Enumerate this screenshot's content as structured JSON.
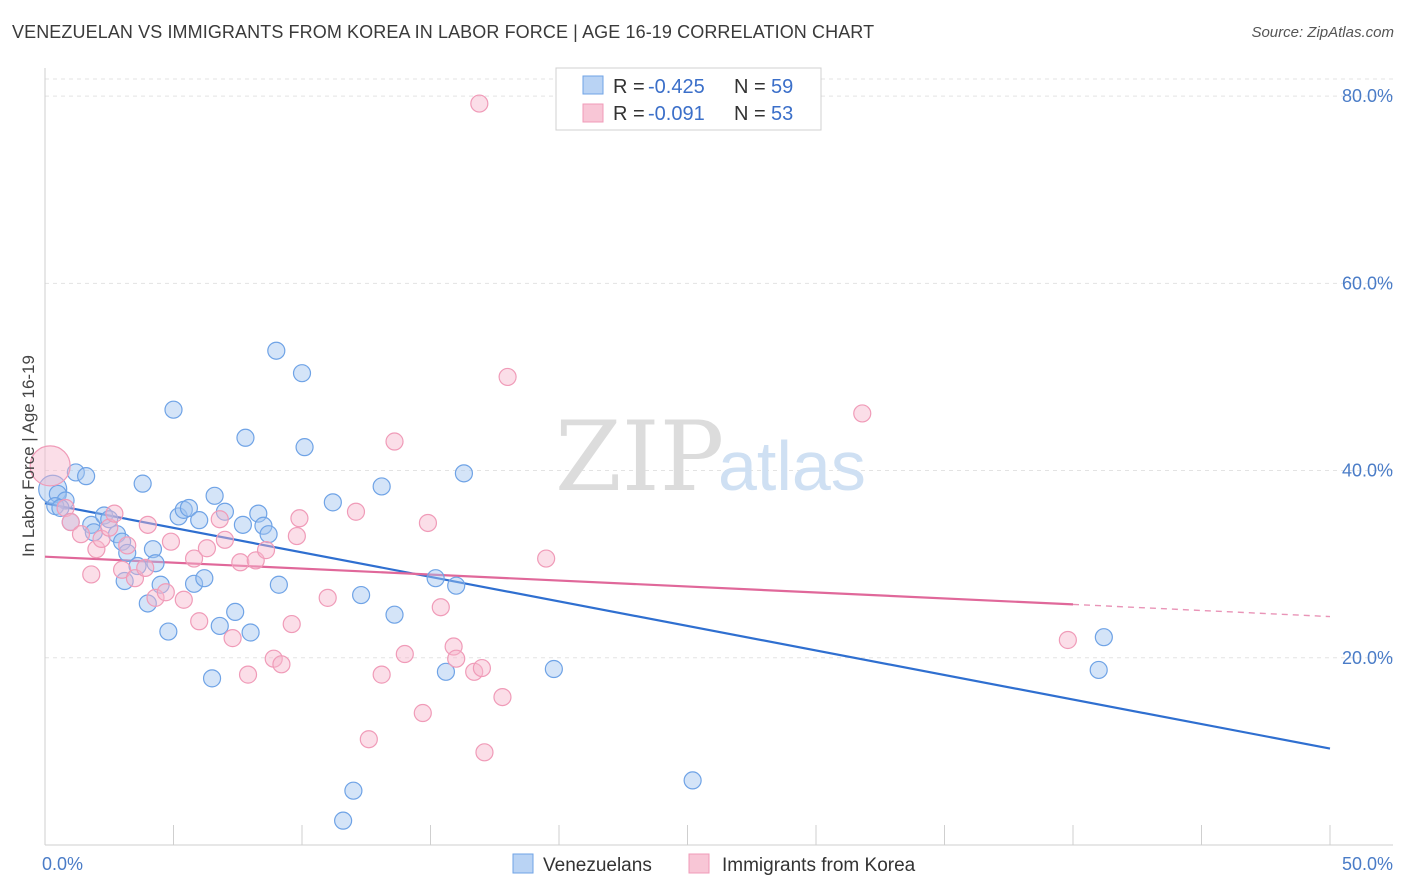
{
  "title": "VENEZUELAN VS IMMIGRANTS FROM KOREA IN LABOR FORCE | AGE 16-19 CORRELATION CHART",
  "source": "Source: ZipAtlas.com",
  "watermark": {
    "part1": "ZIP",
    "part2": "atlas"
  },
  "chart_data": {
    "type": "scatter",
    "title": "VENEZUELAN VS IMMIGRANTS FROM KOREA IN LABOR FORCE | AGE 16-19 CORRELATION CHART",
    "xlabel": "",
    "ylabel": "In Labor Force | Age 16-19",
    "xlim": [
      0,
      50
    ],
    "ylim": [
      0,
      83
    ],
    "x_ticks": [
      {
        "value": 0,
        "label": "0.0%"
      },
      {
        "value": 50,
        "label": "50.0%"
      }
    ],
    "y_ticks": [
      {
        "value": 20,
        "label": "20.0%"
      },
      {
        "value": 40,
        "label": "40.0%"
      },
      {
        "value": 60,
        "label": "60.0%"
      },
      {
        "value": 80,
        "label": "80.0%"
      }
    ],
    "grid": true,
    "legend_position": "top-center",
    "series": [
      {
        "name": "Venezuelans",
        "color": "#6fa3e6",
        "line_color": "#2f6fd0",
        "r_label": "R =",
        "r_value": "-0.425",
        "n_label": "N =",
        "n_value": "59",
        "trend": {
          "x0": 0,
          "y0": 36.5,
          "x1": 50,
          "y1": 10.3
        },
        "points": [
          [
            0.3,
            38
          ],
          [
            0.5,
            37.5
          ],
          [
            0.8,
            36.8
          ],
          [
            0.4,
            36.2
          ],
          [
            0.6,
            36
          ],
          [
            1.0,
            34.5
          ],
          [
            1.2,
            39.8
          ],
          [
            1.6,
            39.4
          ],
          [
            1.8,
            34.2
          ],
          [
            1.9,
            33.4
          ],
          [
            2.3,
            35.2
          ],
          [
            2.5,
            34.8
          ],
          [
            2.8,
            33.2
          ],
          [
            3.0,
            32.4
          ],
          [
            3.2,
            31.2
          ],
          [
            3.6,
            29.8
          ],
          [
            3.1,
            28.2
          ],
          [
            3.8,
            38.6
          ],
          [
            4.0,
            25.8
          ],
          [
            4.2,
            31.6
          ],
          [
            4.3,
            30.1
          ],
          [
            4.5,
            27.8
          ],
          [
            4.8,
            22.8
          ],
          [
            5.0,
            46.5
          ],
          [
            5.2,
            35.1
          ],
          [
            5.4,
            35.8
          ],
          [
            5.6,
            36.0
          ],
          [
            5.8,
            27.9
          ],
          [
            6.0,
            34.7
          ],
          [
            6.2,
            28.5
          ],
          [
            6.5,
            17.8
          ],
          [
            6.6,
            37.3
          ],
          [
            6.8,
            23.4
          ],
          [
            7.0,
            35.6
          ],
          [
            7.4,
            24.9
          ],
          [
            7.7,
            34.2
          ],
          [
            7.8,
            43.5
          ],
          [
            8.0,
            22.7
          ],
          [
            8.3,
            35.4
          ],
          [
            8.5,
            34.1
          ],
          [
            8.7,
            33.2
          ],
          [
            9.0,
            52.8
          ],
          [
            9.1,
            27.8
          ],
          [
            10.0,
            50.4
          ],
          [
            10.1,
            42.5
          ],
          [
            11.2,
            36.6
          ],
          [
            11.6,
            2.6
          ],
          [
            12.0,
            5.8
          ],
          [
            12.3,
            26.7
          ],
          [
            13.1,
            38.3
          ],
          [
            13.6,
            24.6
          ],
          [
            15.2,
            28.5
          ],
          [
            15.6,
            18.5
          ],
          [
            16.0,
            27.7
          ],
          [
            16.3,
            39.7
          ],
          [
            19.8,
            18.8
          ],
          [
            25.2,
            6.9
          ],
          [
            41.0,
            18.7
          ],
          [
            41.2,
            22.2
          ]
        ]
      },
      {
        "name": "Immigrants from Korea",
        "color": "#f09bb8",
        "line_color": "#e0689a",
        "r_label": "R =",
        "r_value": "-0.091",
        "n_label": "N =",
        "n_value": "53",
        "trend": {
          "x0": 0,
          "y0": 30.8,
          "x1": 40,
          "y1": 25.7,
          "dash_to_x": 50,
          "dash_to_y": 24.4
        },
        "points": [
          [
            0.2,
            40.5
          ],
          [
            0.8,
            36
          ],
          [
            1.0,
            34.5
          ],
          [
            1.4,
            33.2
          ],
          [
            1.8,
            28.9
          ],
          [
            2.0,
            31.6
          ],
          [
            2.2,
            32.7
          ],
          [
            2.5,
            33.9
          ],
          [
            2.7,
            35.4
          ],
          [
            3.0,
            29.4
          ],
          [
            3.2,
            32
          ],
          [
            3.5,
            28.5
          ],
          [
            3.9,
            29.6
          ],
          [
            4.0,
            34.2
          ],
          [
            4.3,
            26.4
          ],
          [
            4.7,
            27
          ],
          [
            4.9,
            32.4
          ],
          [
            5.4,
            26.2
          ],
          [
            5.8,
            30.6
          ],
          [
            6.0,
            23.9
          ],
          [
            6.3,
            31.7
          ],
          [
            6.8,
            34.8
          ],
          [
            7.0,
            32.6
          ],
          [
            7.3,
            22.1
          ],
          [
            7.6,
            30.2
          ],
          [
            7.9,
            18.2
          ],
          [
            8.2,
            30.4
          ],
          [
            8.6,
            31.5
          ],
          [
            8.9,
            19.9
          ],
          [
            9.2,
            19.3
          ],
          [
            9.6,
            23.6
          ],
          [
            9.8,
            33
          ],
          [
            9.9,
            34.9
          ],
          [
            11.0,
            26.4
          ],
          [
            12.1,
            35.6
          ],
          [
            12.6,
            11.3
          ],
          [
            13.1,
            18.2
          ],
          [
            13.6,
            43.1
          ],
          [
            14.0,
            20.4
          ],
          [
            14.7,
            14.1
          ],
          [
            14.9,
            34.4
          ],
          [
            15.4,
            25.4
          ],
          [
            15.9,
            21.2
          ],
          [
            16.0,
            19.9
          ],
          [
            16.7,
            18.5
          ],
          [
            17.0,
            18.9
          ],
          [
            17.1,
            9.9
          ],
          [
            17.8,
            15.8
          ],
          [
            18.0,
            50.0
          ],
          [
            19.5,
            30.6
          ],
          [
            31.8,
            46.1
          ],
          [
            39.8,
            21.9
          ],
          [
            16.9,
            79.2
          ]
        ]
      }
    ]
  }
}
